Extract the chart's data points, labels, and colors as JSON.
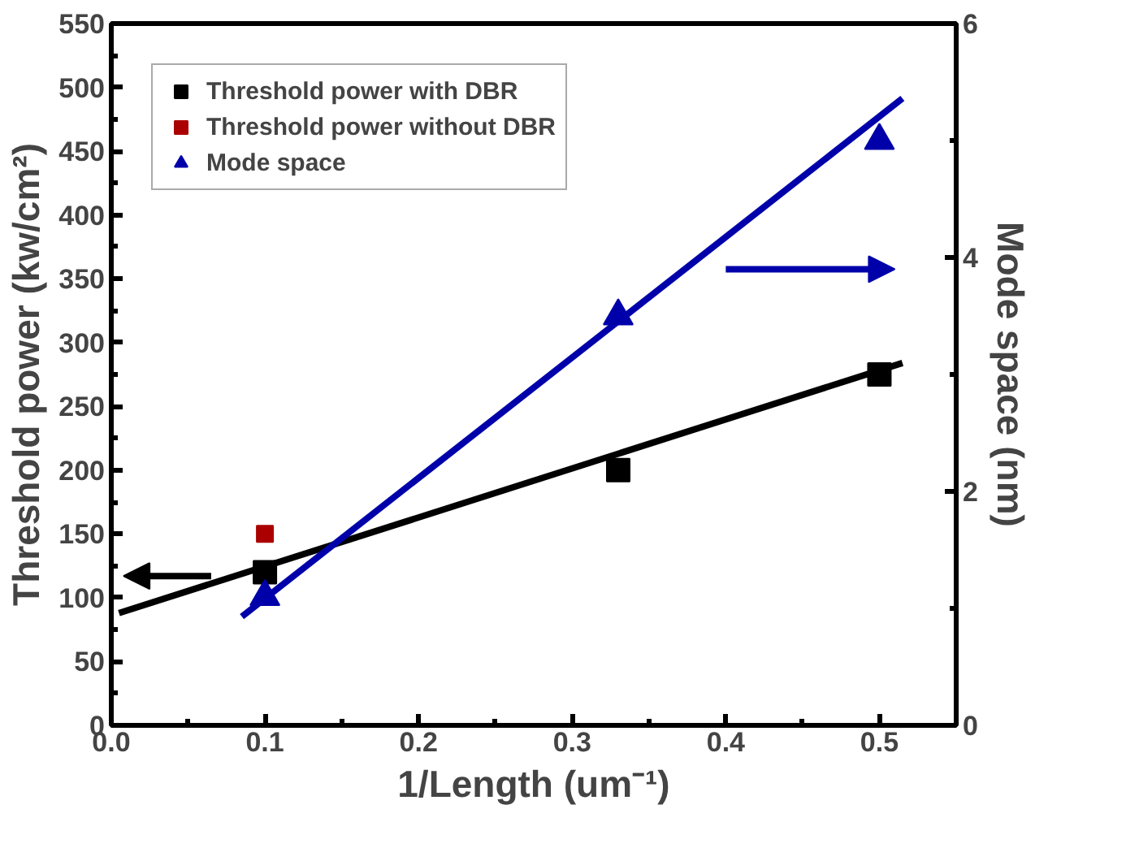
{
  "chart_data": {
    "type": "scatter",
    "xlabel": "1/Length (um⁻¹)",
    "ylabel": "Threshold power (kw/cm²)",
    "y2label": "Mode space (nm)",
    "xlim": [
      0,
      0.55
    ],
    "xticks": [
      {
        "value": 0,
        "label": "0.0"
      },
      0.1,
      0.2,
      0.3,
      0.4,
      0.5
    ],
    "ylim": [
      0,
      550
    ],
    "yticks": [
      0,
      50,
      100,
      150,
      200,
      250,
      300,
      350,
      400,
      450,
      500,
      550
    ],
    "y2lim": [
      0,
      6
    ],
    "y2ticks": [
      0,
      2,
      4,
      6
    ],
    "grid": false,
    "legend": "top left",
    "series": [
      {
        "name": "Threshold power with DBR",
        "color": "#000000",
        "marker": "square",
        "x": [
          0.1,
          0.33,
          0.5
        ],
        "values": [
          120,
          200,
          275
        ]
      },
      {
        "name": "Threshold power without DBR",
        "color": "#aa0000",
        "marker": "square",
        "x": [
          0.1
        ],
        "values": [
          150
        ]
      },
      {
        "name": "Mode space",
        "color": "#0000aa",
        "marker": "triangle",
        "axis": "y2",
        "x": [
          0.1,
          0.33,
          0.5
        ],
        "values": [
          1.1,
          3.5,
          5.0
        ]
      },
      {
        "type": "line",
        "color": "#000000",
        "line_style": "solid",
        "x": [
          0.005,
          0.515
        ],
        "values": [
          88,
          284
        ]
      },
      {
        "type": "line",
        "color": "#0000aa",
        "line_style": "solid",
        "axis": "y2",
        "x": [
          0.085,
          0.515
        ],
        "values": [
          0.93,
          5.36
        ]
      }
    ]
  }
}
